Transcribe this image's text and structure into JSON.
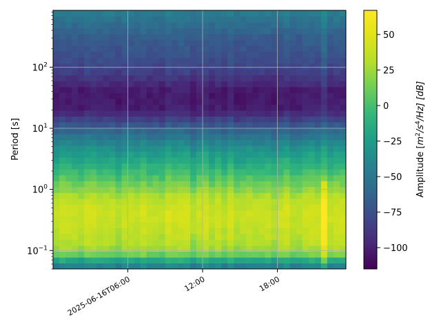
{
  "chart_data": {
    "type": "heatmap",
    "title": "",
    "colormap": "viridis",
    "x_axis": {
      "type": "time",
      "range": [
        "2025-06-16T00:00",
        "2025-06-16T23:30"
      ],
      "ticks": [
        {
          "value": "2025-06-16T06:00",
          "label": "2025-06-16T06:00"
        },
        {
          "value": "2025-06-16T12:00",
          "label": "12:00"
        },
        {
          "value": "2025-06-16T18:00",
          "label": "18:00"
        }
      ],
      "tick_label_rotation": 30
    },
    "y_axis": {
      "label": "Period [s]",
      "scale": "log",
      "range": [
        0.05,
        850
      ],
      "ticks": [
        {
          "value": 0.1,
          "base": "10",
          "exp": "−1"
        },
        {
          "value": 1,
          "base": "10",
          "exp": "0"
        },
        {
          "value": 10,
          "base": "10",
          "exp": "1"
        },
        {
          "value": 100,
          "base": "10",
          "exp": "2"
        }
      ]
    },
    "colorbar": {
      "label_prefix": "Amplitude [",
      "label_unit": "m",
      "label_sup1": "2",
      "label_mid": "/s",
      "label_sup2": "4",
      "label_end": "/Hz] [dB]",
      "range": [
        -115,
        67
      ],
      "ticks": [
        "50",
        "25",
        "0",
        "−25",
        "−50",
        "−75",
        "−100"
      ],
      "tick_values": [
        50,
        25,
        0,
        -25,
        -50,
        -75,
        -100
      ]
    },
    "grid": true,
    "spectral_profile": [
      {
        "period": 0.05,
        "db": -50
      },
      {
        "period": 0.065,
        "db": -30
      },
      {
        "period": 0.08,
        "db": 5
      },
      {
        "period": 0.1,
        "db": 22
      },
      {
        "period": 0.15,
        "db": 32
      },
      {
        "period": 0.25,
        "db": 38
      },
      {
        "period": 0.4,
        "db": 40
      },
      {
        "period": 0.7,
        "db": 33
      },
      {
        "period": 1.0,
        "db": 20
      },
      {
        "period": 2.0,
        "db": -5
      },
      {
        "period": 5.0,
        "db": -35
      },
      {
        "period": 10.0,
        "db": -65
      },
      {
        "period": 20.0,
        "db": -102
      },
      {
        "period": 40.0,
        "db": -104
      },
      {
        "period": 100.0,
        "db": -80
      },
      {
        "period": 300.0,
        "db": -68
      },
      {
        "period": 850.0,
        "db": -45
      }
    ],
    "events": [
      {
        "time": "2025-06-16T21:45",
        "duration_min": 50,
        "boost_db": 22,
        "low_period_db": 35
      },
      {
        "time": "2025-06-16T12:00",
        "duration_min": 30,
        "boost_db": 8,
        "low_period_db": 10
      }
    ]
  }
}
